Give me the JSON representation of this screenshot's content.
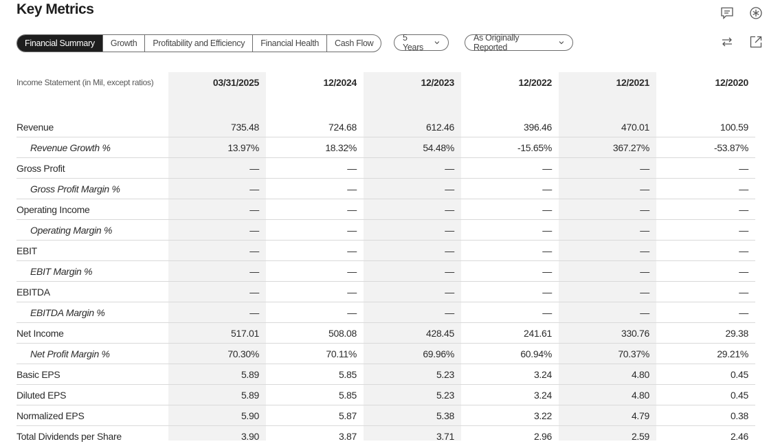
{
  "page": {
    "title": "Key Metrics"
  },
  "icons": {
    "comment": "comment-icon",
    "settings": "settings-icon",
    "swap": "swap-icon",
    "export": "export-icon"
  },
  "tabs": [
    {
      "label": "Financial Summary",
      "active": true
    },
    {
      "label": "Growth",
      "active": false
    },
    {
      "label": "Profitability and Efficiency",
      "active": false
    },
    {
      "label": "Financial Health",
      "active": false
    },
    {
      "label": "Cash Flow",
      "active": false
    }
  ],
  "filters": {
    "period": "5 Years",
    "reporting": "As Originally Reported"
  },
  "table": {
    "label_header": "Income Statement (in Mil, except ratios)",
    "columns": [
      "03/31/2025",
      "12/2024",
      "12/2023",
      "12/2022",
      "12/2021",
      "12/2020"
    ],
    "rows": [
      {
        "label": "Revenue",
        "sub": false,
        "values": [
          "735.48",
          "724.68",
          "612.46",
          "396.46",
          "470.01",
          "100.59"
        ]
      },
      {
        "label": "Revenue Growth %",
        "sub": true,
        "values": [
          "13.97%",
          "18.32%",
          "54.48%",
          "-15.65%",
          "367.27%",
          "-53.87%"
        ]
      },
      {
        "label": "Gross Profit",
        "sub": false,
        "values": [
          "—",
          "—",
          "—",
          "—",
          "—",
          "—"
        ]
      },
      {
        "label": "Gross Profit Margin %",
        "sub": true,
        "values": [
          "—",
          "—",
          "—",
          "—",
          "—",
          "—"
        ]
      },
      {
        "label": "Operating Income",
        "sub": false,
        "values": [
          "—",
          "—",
          "—",
          "—",
          "—",
          "—"
        ]
      },
      {
        "label": "Operating Margin %",
        "sub": true,
        "values": [
          "—",
          "—",
          "—",
          "—",
          "—",
          "—"
        ]
      },
      {
        "label": "EBIT",
        "sub": false,
        "values": [
          "—",
          "—",
          "—",
          "—",
          "—",
          "—"
        ]
      },
      {
        "label": "EBIT Margin %",
        "sub": true,
        "values": [
          "—",
          "—",
          "—",
          "—",
          "—",
          "—"
        ]
      },
      {
        "label": "EBITDA",
        "sub": false,
        "values": [
          "—",
          "—",
          "—",
          "—",
          "—",
          "—"
        ]
      },
      {
        "label": "EBITDA Margin %",
        "sub": true,
        "values": [
          "—",
          "—",
          "—",
          "—",
          "—",
          "—"
        ]
      },
      {
        "label": "Net Income",
        "sub": false,
        "values": [
          "517.01",
          "508.08",
          "428.45",
          "241.61",
          "330.76",
          "29.38"
        ]
      },
      {
        "label": "Net Profit Margin %",
        "sub": true,
        "values": [
          "70.30%",
          "70.11%",
          "69.96%",
          "60.94%",
          "70.37%",
          "29.21%"
        ]
      },
      {
        "label": "Basic EPS",
        "sub": false,
        "values": [
          "5.89",
          "5.85",
          "5.23",
          "3.24",
          "4.80",
          "0.45"
        ]
      },
      {
        "label": "Diluted EPS",
        "sub": false,
        "values": [
          "5.89",
          "5.85",
          "5.23",
          "3.24",
          "4.80",
          "0.45"
        ]
      },
      {
        "label": "Normalized EPS",
        "sub": false,
        "values": [
          "5.90",
          "5.87",
          "5.38",
          "3.22",
          "4.79",
          "0.38"
        ]
      },
      {
        "label": "Total Dividends per Share",
        "sub": false,
        "values": [
          "3.90",
          "3.87",
          "3.71",
          "2.96",
          "2.59",
          "2.46"
        ]
      }
    ]
  }
}
